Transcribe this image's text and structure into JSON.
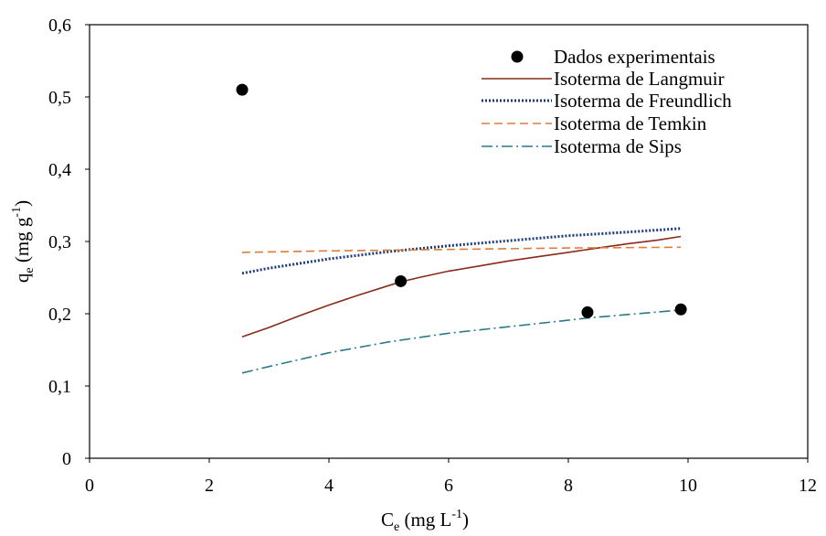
{
  "chart_data": {
    "type": "scatter",
    "xlabel": {
      "main": "C",
      "sub": "e",
      "rest": " (mg L",
      "sup": "-1",
      "close": ")"
    },
    "ylabel": {
      "main": "q",
      "sub": "e",
      "rest": " (mg g",
      "sup": "-1",
      "close": ")"
    },
    "xlim": [
      0,
      12
    ],
    "ylim": [
      0,
      0.6
    ],
    "xticks": [
      0,
      2,
      4,
      6,
      8,
      10,
      12
    ],
    "xtick_labels": [
      "0",
      "2",
      "4",
      "6",
      "8",
      "10",
      "12"
    ],
    "yticks": [
      0,
      0.1,
      0.2,
      0.3,
      0.4,
      0.5,
      0.6
    ],
    "ytick_labels": [
      "0",
      "0,1",
      "0,2",
      "0,3",
      "0,4",
      "0,5",
      "0,6"
    ],
    "grid": false,
    "legend_position": "top-right",
    "series": [
      {
        "name": "Dados experimentais",
        "kind": "points",
        "color": "#000000",
        "x": [
          2.55,
          5.2,
          8.32,
          9.88
        ],
        "y": [
          0.51,
          0.245,
          0.202,
          0.206
        ]
      },
      {
        "name": "Isoterma de Langmuir",
        "kind": "line",
        "style": "solid",
        "color": "#8B2A1A",
        "x": [
          2.55,
          3.0,
          3.5,
          4.0,
          4.5,
          5.0,
          5.2,
          5.5,
          6.0,
          6.5,
          7.0,
          7.5,
          8.0,
          8.5,
          9.0,
          9.5,
          9.88
        ],
        "y": [
          0.168,
          0.181,
          0.197,
          0.212,
          0.226,
          0.239,
          0.244,
          0.25,
          0.259,
          0.266,
          0.273,
          0.279,
          0.285,
          0.291,
          0.297,
          0.302,
          0.307
        ]
      },
      {
        "name": "Isoterma de Freundlich",
        "kind": "line",
        "style": "dotted",
        "color": "#1F3A7A",
        "x": [
          2.55,
          3.0,
          4.0,
          5.0,
          6.0,
          7.0,
          8.0,
          9.0,
          9.88
        ],
        "y": [
          0.256,
          0.263,
          0.276,
          0.286,
          0.294,
          0.301,
          0.308,
          0.313,
          0.318
        ]
      },
      {
        "name": "Isoterma de Temkin",
        "kind": "line",
        "style": "dashed",
        "color": "#E07B39",
        "x": [
          2.55,
          4.0,
          6.0,
          8.0,
          9.88
        ],
        "y": [
          0.285,
          0.287,
          0.289,
          0.291,
          0.292
        ]
      },
      {
        "name": "Isoterma de Sips",
        "kind": "line",
        "style": "dashdot",
        "color": "#2A7A8A",
        "x": [
          2.55,
          3.0,
          4.0,
          5.0,
          6.0,
          7.0,
          8.0,
          8.32,
          9.0,
          9.88
        ],
        "y": [
          0.118,
          0.127,
          0.146,
          0.161,
          0.173,
          0.182,
          0.191,
          0.194,
          0.199,
          0.205
        ]
      }
    ]
  }
}
